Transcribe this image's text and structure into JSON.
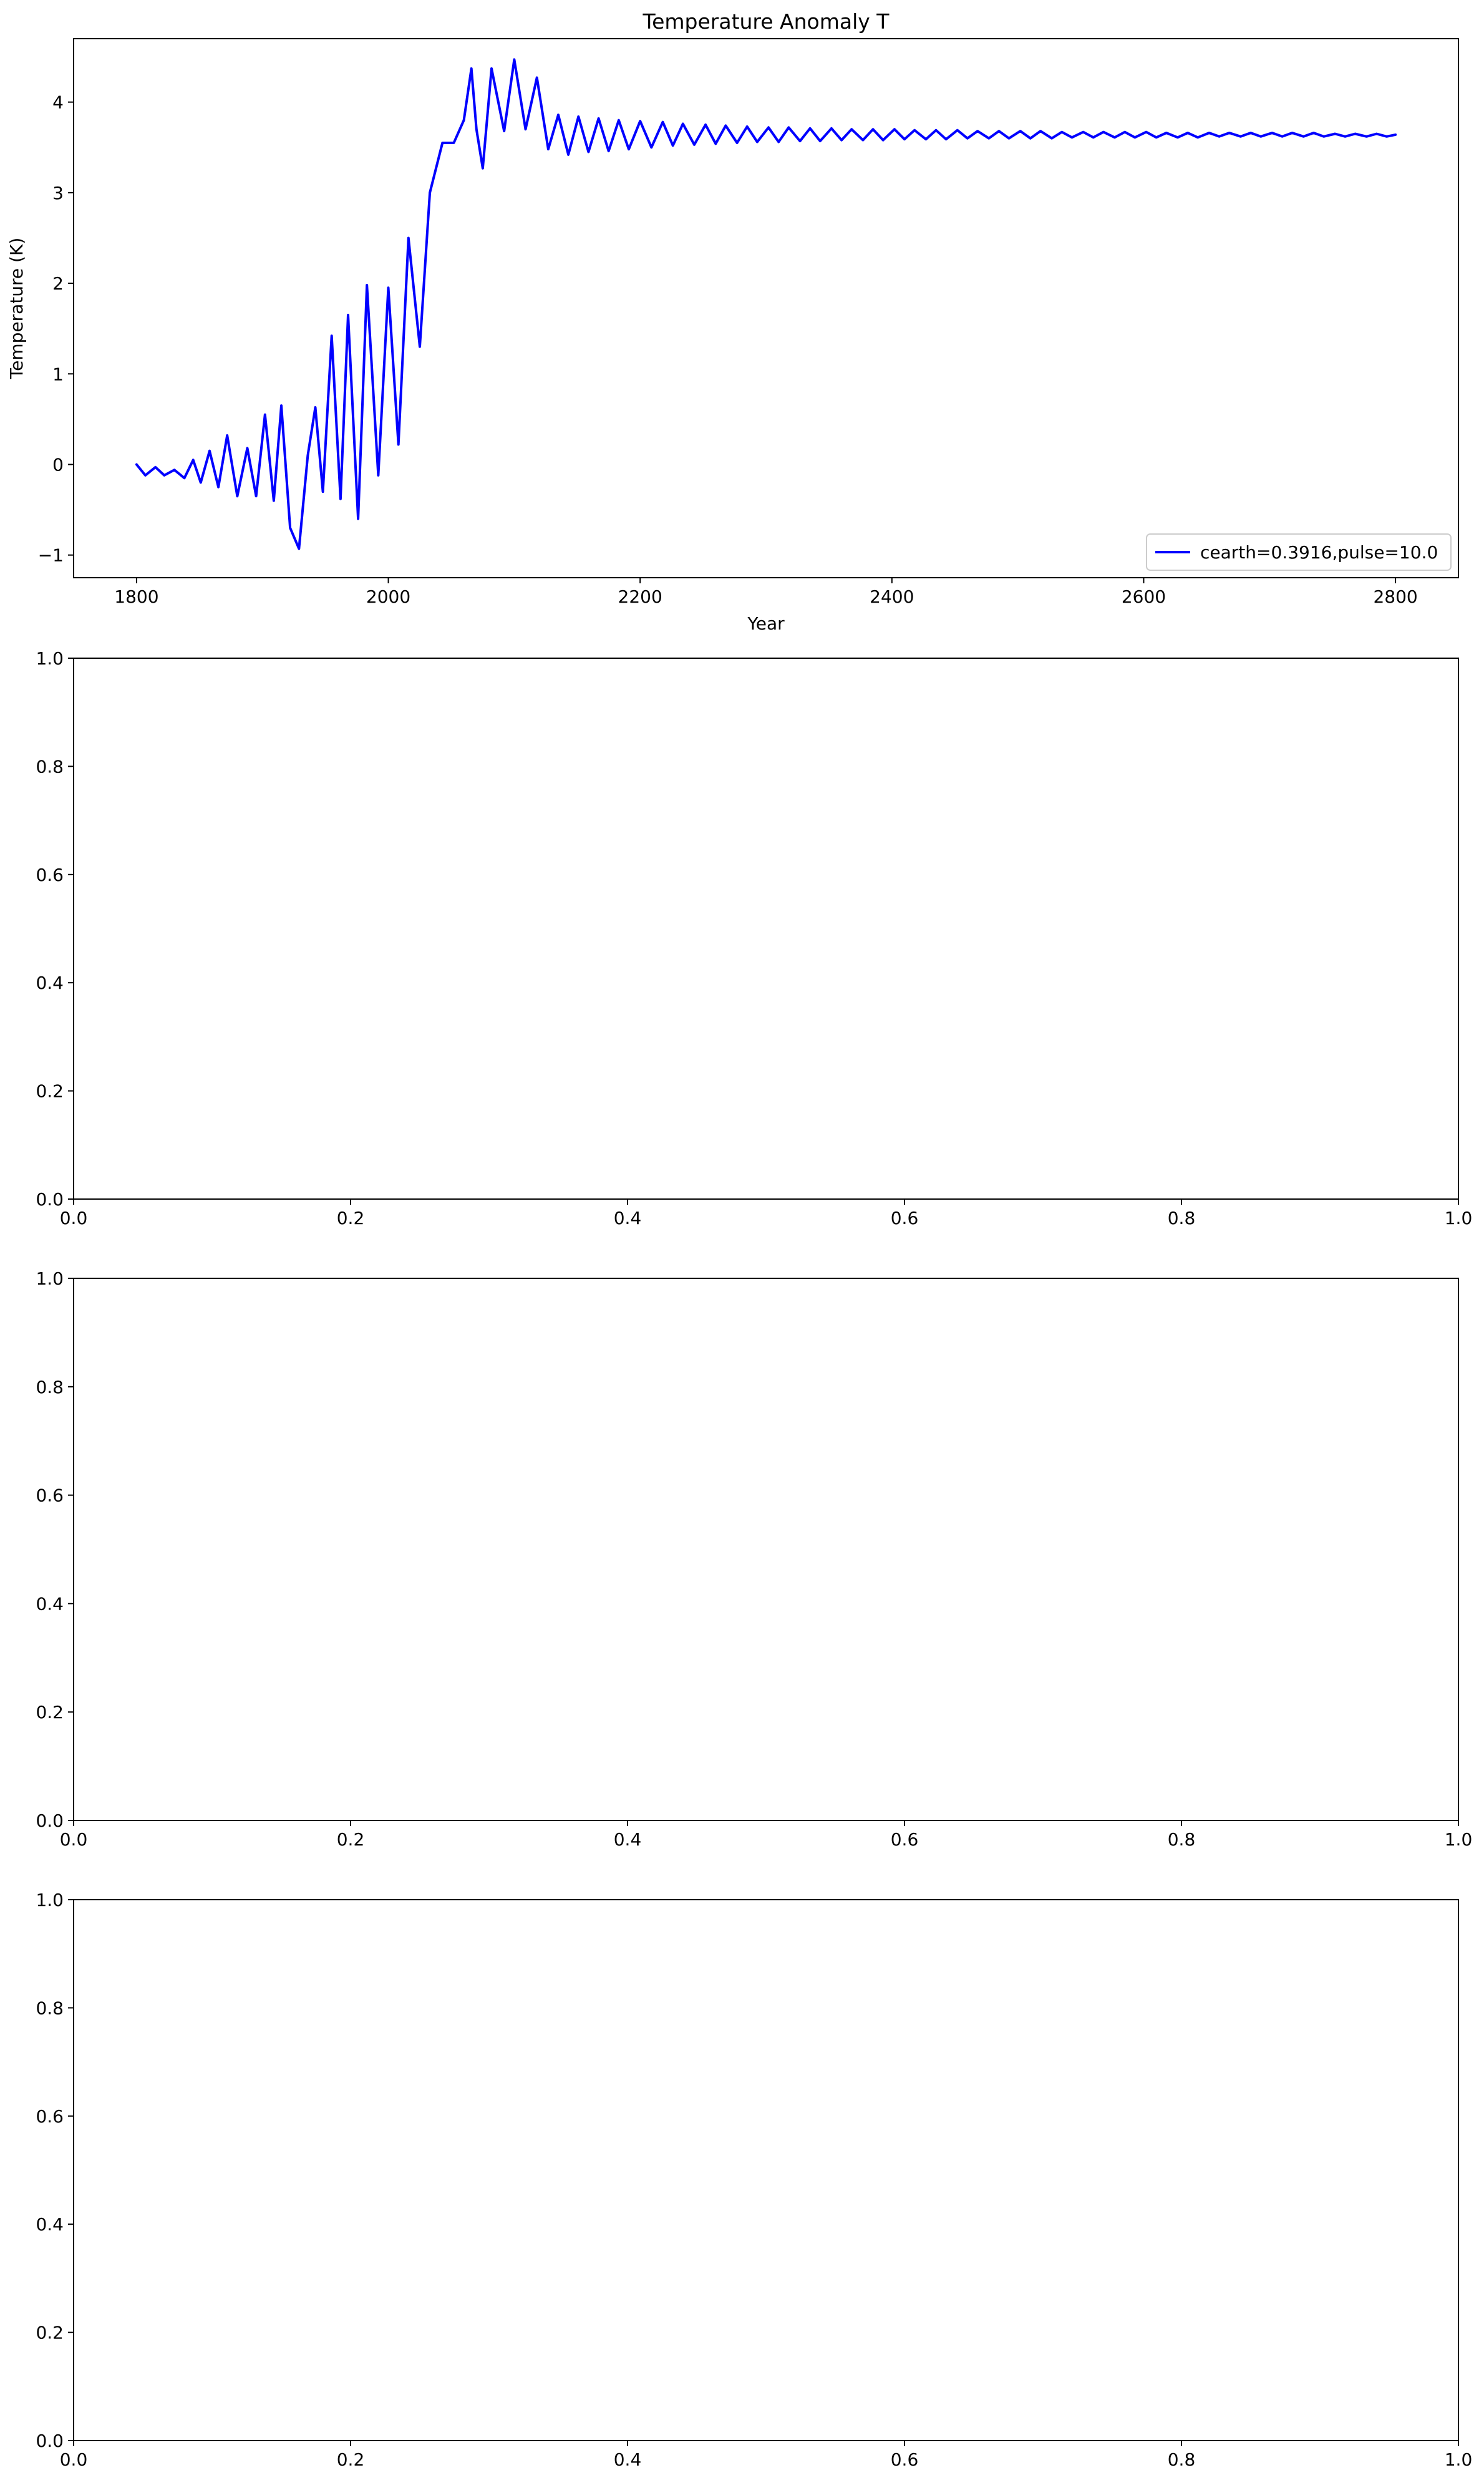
{
  "figure": {
    "colors": {
      "background": "#ffffff",
      "axes": "#000000",
      "line": "#0000ff"
    }
  },
  "chart_data": [
    {
      "type": "line",
      "title": "Temperature Anomaly T",
      "xlabel": "Year",
      "ylabel": "Temperature (K)",
      "xlim": [
        1750,
        2850
      ],
      "ylim": [
        -1.25,
        4.7
      ],
      "x_ticks": [
        1800,
        2000,
        2200,
        2400,
        2600,
        2800
      ],
      "y_ticks": [
        -1,
        0,
        1,
        2,
        3,
        4
      ],
      "grid": false,
      "legend": "bottom-right",
      "series": [
        {
          "name": "cearth=0.3916,pulse=10.0",
          "color": "#0000ff",
          "x": [
            1800,
            1807,
            1815,
            1822,
            1830,
            1838,
            1845,
            1851,
            1858,
            1865,
            1872,
            1880,
            1888,
            1895,
            1902,
            1909,
            1915,
            1922,
            1929,
            1936,
            1942,
            1948,
            1955,
            1962,
            1968,
            1976,
            1983,
            1992,
            2000,
            2008,
            2016,
            2025,
            2033,
            2043,
            2052,
            2060,
            2066,
            2070,
            2075,
            2082,
            2092,
            2100,
            2109,
            2118,
            2127,
            2135,
            2143,
            2151,
            2159,
            2167,
            2175,
            2183,
            2191,
            2200,
            2209,
            2218,
            2226,
            2234,
            2243,
            2252,
            2260,
            2268,
            2277,
            2285,
            2293,
            2302,
            2310,
            2318,
            2327,
            2335,
            2343,
            2352,
            2360,
            2368,
            2377,
            2385,
            2393,
            2402,
            2410,
            2418,
            2427,
            2435,
            2443,
            2452,
            2460,
            2468,
            2477,
            2485,
            2493,
            2502,
            2510,
            2518,
            2527,
            2535,
            2543,
            2552,
            2560,
            2568,
            2577,
            2585,
            2593,
            2602,
            2610,
            2618,
            2627,
            2635,
            2643,
            2652,
            2660,
            2668,
            2677,
            2685,
            2693,
            2702,
            2710,
            2718,
            2727,
            2735,
            2743,
            2752,
            2760,
            2768,
            2777,
            2785,
            2793,
            2800
          ],
          "y": [
            0.0,
            -0.12,
            -0.03,
            -0.12,
            -0.06,
            -0.15,
            0.05,
            -0.2,
            0.15,
            -0.25,
            0.32,
            -0.35,
            0.18,
            -0.35,
            0.55,
            -0.4,
            0.65,
            -0.7,
            -0.93,
            0.1,
            0.63,
            -0.3,
            1.42,
            -0.38,
            1.65,
            -0.6,
            1.98,
            -0.12,
            1.95,
            0.22,
            2.5,
            1.3,
            3.0,
            3.55,
            3.55,
            3.8,
            4.37,
            3.7,
            3.27,
            4.37,
            3.68,
            4.47,
            3.7,
            4.27,
            3.48,
            3.86,
            3.42,
            3.84,
            3.45,
            3.82,
            3.46,
            3.8,
            3.48,
            3.79,
            3.5,
            3.78,
            3.52,
            3.76,
            3.53,
            3.75,
            3.54,
            3.74,
            3.55,
            3.73,
            3.56,
            3.72,
            3.56,
            3.72,
            3.57,
            3.71,
            3.57,
            3.71,
            3.58,
            3.7,
            3.58,
            3.7,
            3.58,
            3.7,
            3.59,
            3.69,
            3.59,
            3.69,
            3.59,
            3.69,
            3.6,
            3.68,
            3.6,
            3.68,
            3.6,
            3.68,
            3.6,
            3.68,
            3.6,
            3.67,
            3.61,
            3.67,
            3.61,
            3.67,
            3.61,
            3.67,
            3.61,
            3.67,
            3.61,
            3.66,
            3.61,
            3.66,
            3.61,
            3.66,
            3.62,
            3.66,
            3.62,
            3.66,
            3.62,
            3.66,
            3.62,
            3.66,
            3.62,
            3.66,
            3.62,
            3.65,
            3.62,
            3.65,
            3.62,
            3.65,
            3.62,
            3.64
          ]
        }
      ]
    },
    {
      "type": "line",
      "title": "",
      "xlabel": "",
      "ylabel": "",
      "xlim": [
        0,
        1
      ],
      "ylim": [
        0,
        1
      ],
      "x_ticks": [
        0.0,
        0.2,
        0.4,
        0.6,
        0.8,
        1.0
      ],
      "y_ticks": [
        0.0,
        0.2,
        0.4,
        0.6,
        0.8,
        1.0
      ],
      "grid": false,
      "series": []
    },
    {
      "type": "line",
      "title": "",
      "xlabel": "",
      "ylabel": "",
      "xlim": [
        0,
        1
      ],
      "ylim": [
        0,
        1
      ],
      "x_ticks": [
        0.0,
        0.2,
        0.4,
        0.6,
        0.8,
        1.0
      ],
      "y_ticks": [
        0.0,
        0.2,
        0.4,
        0.6,
        0.8,
        1.0
      ],
      "grid": false,
      "series": []
    },
    {
      "type": "line",
      "title": "",
      "xlabel": "",
      "ylabel": "",
      "xlim": [
        0,
        1
      ],
      "ylim": [
        0,
        1
      ],
      "x_ticks": [
        0.0,
        0.2,
        0.4,
        0.6,
        0.8,
        1.0
      ],
      "y_ticks": [
        0.0,
        0.2,
        0.4,
        0.6,
        0.8,
        1.0
      ],
      "grid": false,
      "series": []
    }
  ]
}
